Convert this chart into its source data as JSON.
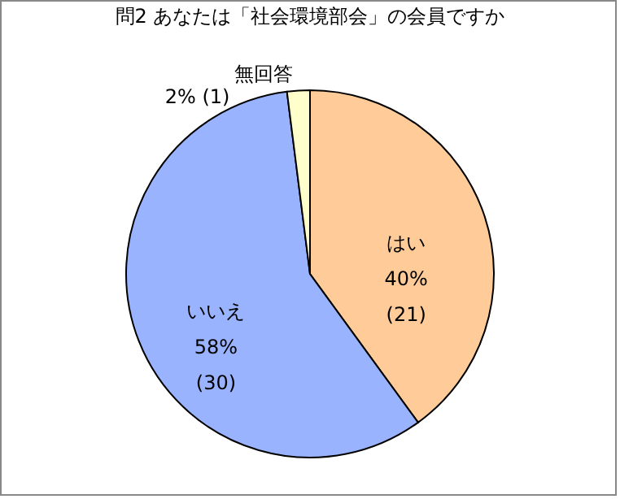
{
  "chart_data": {
    "type": "pie",
    "title": "問2 あなたは「社会環境部会」の会員ですか",
    "categories": [
      "はい",
      "いいえ",
      "無回答"
    ],
    "values": [
      40,
      58,
      2
    ],
    "value_labels": [
      "40%\n(21)",
      "58%\n(30)",
      "2%\n(1)"
    ],
    "colors": [
      "#ffcc99",
      "#99b3ff",
      "#ffffcc"
    ],
    "legend": false
  }
}
